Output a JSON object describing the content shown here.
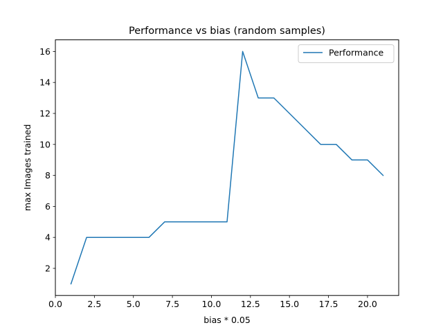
{
  "chart_data": {
    "type": "line",
    "title": "Performance vs bias (random samples)",
    "xlabel": "bias * 0.05",
    "ylabel": "max Images trained",
    "xlim": [
      0.0,
      22.0
    ],
    "ylim": [
      0.25,
      16.75
    ],
    "xticks": [
      0.0,
      2.5,
      5.0,
      7.5,
      10.0,
      12.5,
      15.0,
      17.5,
      20.0
    ],
    "xtick_labels": [
      "0.0",
      "2.5",
      "5.0",
      "7.5",
      "10.0",
      "12.5",
      "15.0",
      "17.5",
      "20.0"
    ],
    "yticks": [
      2,
      4,
      6,
      8,
      10,
      12,
      14,
      16
    ],
    "ytick_labels": [
      "2",
      "4",
      "6",
      "8",
      "10",
      "12",
      "14",
      "16"
    ],
    "grid": false,
    "legend_position": "top-right",
    "series": [
      {
        "name": "Performance",
        "color": "#1f77b4",
        "x": [
          1,
          2,
          3,
          4,
          5,
          6,
          7,
          8,
          9,
          10,
          11,
          12,
          13,
          14,
          15,
          16,
          17,
          18,
          19,
          20,
          21
        ],
        "y": [
          1,
          4,
          4,
          4,
          4,
          4,
          5,
          5,
          5,
          5,
          5,
          16,
          13,
          13,
          12,
          11,
          10,
          10,
          9,
          9,
          8
        ]
      }
    ]
  }
}
